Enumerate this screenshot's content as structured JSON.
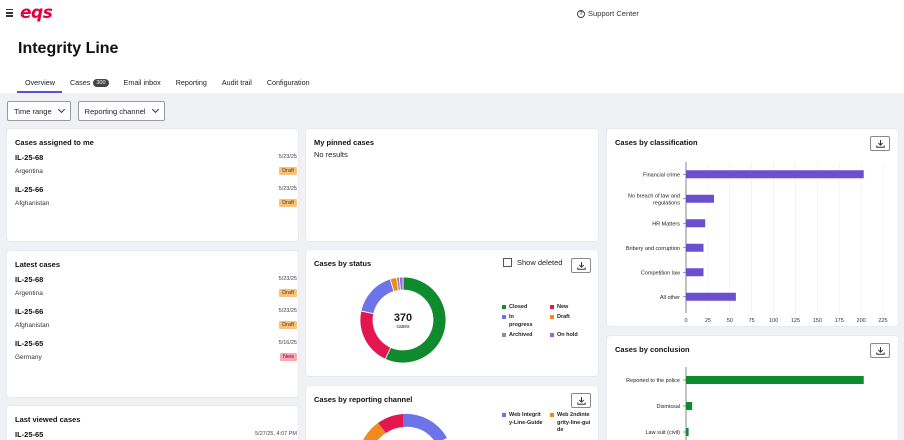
{
  "brand": {
    "logo_text": "eqs",
    "accent": "#e3003f",
    "primary": "#5a4fd6"
  },
  "topbar": {
    "support_label": "Support Center"
  },
  "page_title": "Integrity Line",
  "tabs": [
    {
      "label": "Overview",
      "active": true
    },
    {
      "label": "Cases",
      "count": "300"
    },
    {
      "label": "Email inbox"
    },
    {
      "label": "Reporting"
    },
    {
      "label": "Audit trail"
    },
    {
      "label": "Configuration"
    }
  ],
  "filters": {
    "time_range": "Time range",
    "reporting_channel": "Reporting channel"
  },
  "assigned": {
    "title": "Cases assigned to me",
    "cases": [
      {
        "id": "IL-25-68",
        "country": "Argentina",
        "date": "5/23/25",
        "status": "Draft"
      },
      {
        "id": "IL-25-66",
        "country": "Afghanistan",
        "date": "5/23/25",
        "status": "Draft"
      }
    ]
  },
  "latest": {
    "title": "Latest cases",
    "cases": [
      {
        "id": "IL-25-68",
        "country": "Argentina",
        "date": "5/23/25",
        "status": "Draft"
      },
      {
        "id": "IL-25-66",
        "country": "Afghanistan",
        "date": "5/23/25",
        "status": "Draft"
      },
      {
        "id": "IL-25-65",
        "country": "Germany",
        "date": "5/16/25",
        "status": "New"
      }
    ]
  },
  "last_viewed": {
    "title": "Last viewed cases",
    "cases": [
      {
        "id": "IL-25-65",
        "date": "5/27/25, 4:07 PM"
      }
    ]
  },
  "pinned": {
    "title": "My pinned cases",
    "empty": "No results"
  },
  "status": {
    "title": "Cases by status",
    "show_deleted": "Show deleted",
    "total": "370",
    "total_label": "cases",
    "legend": [
      {
        "label": "Closed",
        "color": "#0f8a2d"
      },
      {
        "label": "New",
        "color": "#e3164f"
      },
      {
        "label": "In progress",
        "color": "#6d73e8"
      },
      {
        "label": "Draft",
        "color": "#f08a1c"
      },
      {
        "label": "Archived",
        "color": "#8e8e93"
      },
      {
        "label": "On hold",
        "color": "#a35ee0"
      }
    ]
  },
  "channel": {
    "title": "Cases by reporting channel",
    "legend": [
      {
        "label": "Web Integrity-Line-Guide",
        "color": "#6d73e8"
      },
      {
        "label": "Web 2ndintegrity-line-guide",
        "color": "#f08a1c"
      }
    ]
  },
  "chart_data": [
    {
      "type": "pie",
      "title": "Cases by status",
      "categories": [
        "Closed",
        "New",
        "In progress",
        "Draft",
        "Archived",
        "On hold"
      ],
      "values": [
        210,
        80,
        62,
        9,
        4,
        5
      ]
    },
    {
      "type": "bar",
      "orientation": "horizontal",
      "title": "Cases by classification",
      "categories": [
        "Financial crime",
        "No breach of law and regulations",
        "HR Matters",
        "Bribery and corruption",
        "Competition law",
        "All other"
      ],
      "values": [
        203,
        32,
        22,
        20,
        20,
        57
      ],
      "xlim": [
        0,
        225
      ],
      "ticks": [
        0,
        25,
        50,
        75,
        100,
        125,
        150,
        175,
        200,
        225
      ],
      "color": "#6b4fcf"
    },
    {
      "type": "bar",
      "orientation": "horizontal",
      "title": "Cases by conclusion",
      "categories": [
        "Reported to the police",
        "Dismissal",
        "Law suit (civil)"
      ],
      "values": [
        203,
        7,
        3
      ],
      "xlim": [
        0,
        225
      ],
      "color": "#0f8a2d"
    }
  ]
}
